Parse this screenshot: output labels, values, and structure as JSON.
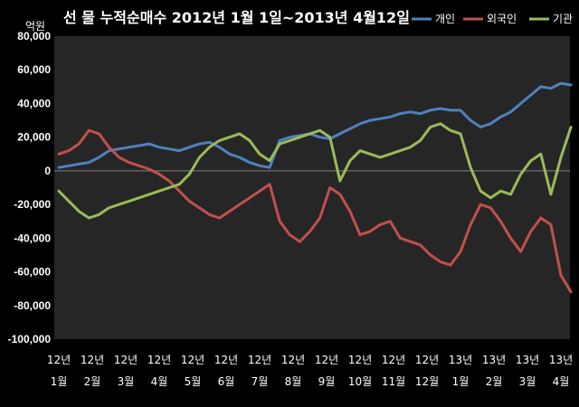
{
  "chart_data": {
    "type": "line",
    "title": "선 물 누적순매수 2012년 1월 1일~2013년 4월12일",
    "unit_label": "억원",
    "ylim": [
      -100000,
      80000
    ],
    "yticks": [
      80000,
      60000,
      40000,
      20000,
      0,
      -20000,
      -40000,
      -60000,
      -80000,
      -100000
    ],
    "ytick_labels": [
      "80,000",
      "60,000",
      "40,000",
      "20,000",
      "0",
      "-20,000",
      "-40,000",
      "-60,000",
      "-80,000",
      "-100,000"
    ],
    "x_categories": [
      {
        "year": "12년",
        "month": "1월"
      },
      {
        "year": "12년",
        "month": "2월"
      },
      {
        "year": "12년",
        "month": "3월"
      },
      {
        "year": "12년",
        "month": "4월"
      },
      {
        "year": "12년",
        "month": "5월"
      },
      {
        "year": "12년",
        "month": "6월"
      },
      {
        "year": "12년",
        "month": "7월"
      },
      {
        "year": "12년",
        "month": "8월"
      },
      {
        "year": "12년",
        "month": "9월"
      },
      {
        "year": "12년",
        "month": "10월"
      },
      {
        "year": "12년",
        "month": "11월"
      },
      {
        "year": "12년",
        "month": "12월"
      },
      {
        "year": "13년",
        "month": "1월"
      },
      {
        "year": "13년",
        "month": "2월"
      },
      {
        "year": "13년",
        "month": "3월"
      },
      {
        "year": "13년",
        "month": "4월"
      }
    ],
    "x": [
      0,
      0.3,
      0.6,
      0.9,
      1.2,
      1.5,
      1.8,
      2.1,
      2.4,
      2.7,
      3.0,
      3.3,
      3.6,
      3.9,
      4.2,
      4.5,
      4.8,
      5.1,
      5.4,
      5.7,
      6.0,
      6.3,
      6.6,
      6.9,
      7.2,
      7.5,
      7.8,
      8.1,
      8.4,
      8.7,
      9.0,
      9.3,
      9.6,
      9.9,
      10.2,
      10.5,
      10.8,
      11.1,
      11.4,
      11.7,
      12.0,
      12.3,
      12.6,
      12.9,
      13.2,
      13.5,
      13.8,
      14.1,
      14.4,
      14.7,
      15.0,
      15.3
    ],
    "series": [
      {
        "name": "개인",
        "color": "#4f81bd",
        "values": [
          2000,
          3000,
          4000,
          5000,
          8000,
          12000,
          13000,
          14000,
          15000,
          16000,
          14000,
          13000,
          12000,
          14000,
          16000,
          17000,
          14000,
          10000,
          8000,
          5000,
          3000,
          2000,
          18000,
          20000,
          21000,
          22000,
          20000,
          19000,
          22000,
          25000,
          28000,
          30000,
          31000,
          32000,
          34000,
          35000,
          34000,
          36000,
          37000,
          36000,
          36000,
          30000,
          26000,
          28000,
          32000,
          35000,
          40000,
          45000,
          50000,
          49000,
          52000,
          51000
        ]
      },
      {
        "name": "외국인",
        "color": "#c0504d",
        "values": [
          10000,
          12000,
          16000,
          24000,
          22000,
          14000,
          8000,
          5000,
          3000,
          1000,
          -2000,
          -6000,
          -12000,
          -18000,
          -22000,
          -26000,
          -28000,
          -24000,
          -20000,
          -16000,
          -12000,
          -8000,
          -30000,
          -38000,
          -42000,
          -36000,
          -28000,
          -10000,
          -14000,
          -24000,
          -38000,
          -36000,
          -32000,
          -30000,
          -40000,
          -42000,
          -44000,
          -50000,
          -54000,
          -56000,
          -48000,
          -32000,
          -20000,
          -22000,
          -30000,
          -40000,
          -48000,
          -36000,
          -28000,
          -32000,
          -62000,
          -72000
        ]
      },
      {
        "name": "기관",
        "color": "#9bbb59",
        "values": [
          -12000,
          -18000,
          -24000,
          -28000,
          -26000,
          -22000,
          -20000,
          -18000,
          -16000,
          -14000,
          -12000,
          -10000,
          -8000,
          -2000,
          8000,
          14000,
          18000,
          20000,
          22000,
          18000,
          10000,
          6000,
          16000,
          18000,
          20000,
          22000,
          24000,
          20000,
          -6000,
          6000,
          12000,
          10000,
          8000,
          10000,
          12000,
          14000,
          18000,
          26000,
          28000,
          24000,
          22000,
          2000,
          -12000,
          -16000,
          -12000,
          -14000,
          -2000,
          6000,
          10000,
          -14000,
          8000,
          26000
        ]
      }
    ],
    "grid": false,
    "legend_position": "top-right"
  }
}
